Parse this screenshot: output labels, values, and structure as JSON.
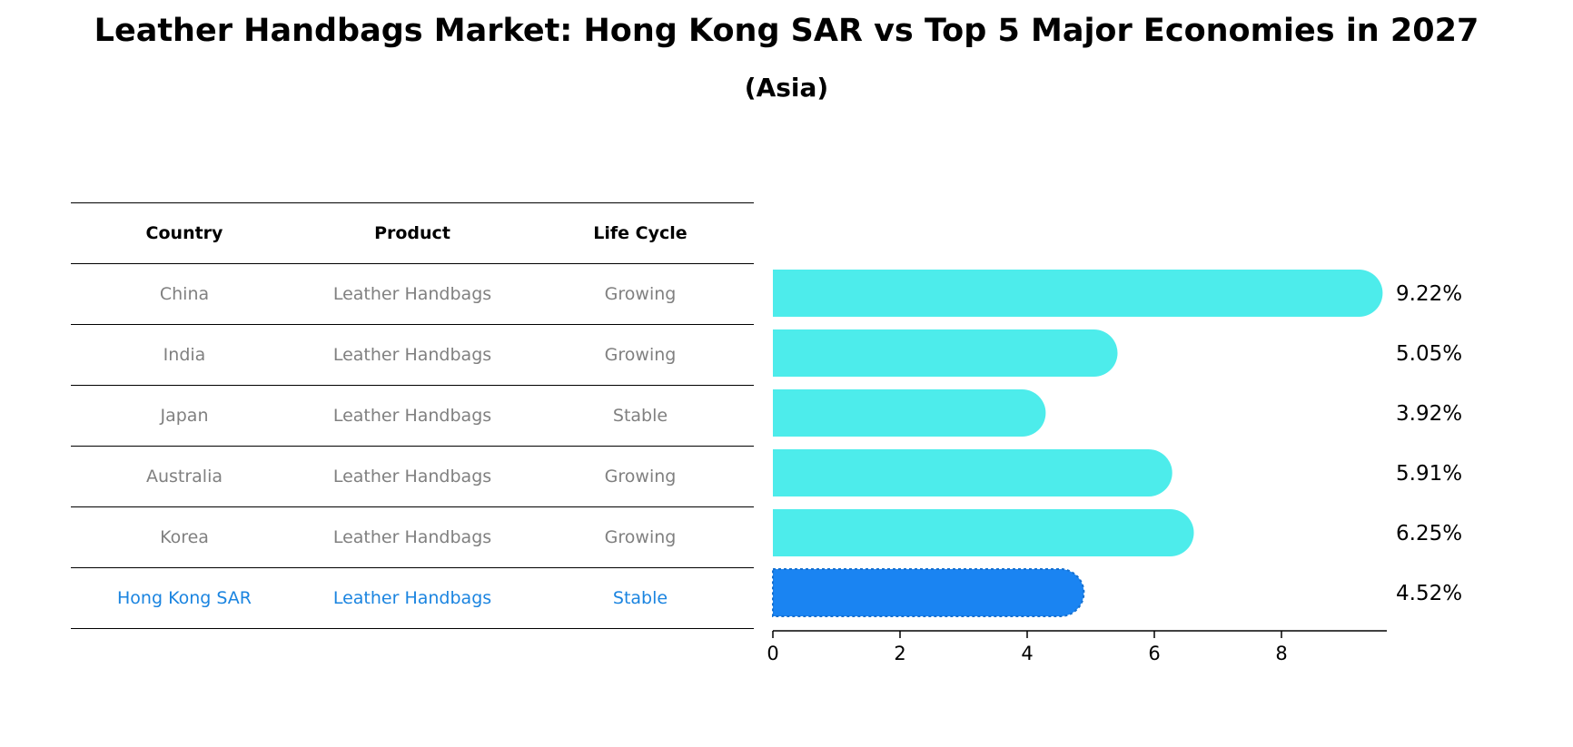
{
  "title": "Leather Handbags Market: Hong Kong SAR vs Top 5 Major Economies in 2027",
  "subtitle": "(Asia)",
  "table": {
    "headers": [
      "Country",
      "Product",
      "Life Cycle"
    ],
    "rows": [
      {
        "country": "China",
        "product": "Leather Handbags",
        "life_cycle": "Growing"
      },
      {
        "country": "India",
        "product": "Leather Handbags",
        "life_cycle": "Growing"
      },
      {
        "country": "Japan",
        "product": "Leather Handbags",
        "life_cycle": "Stable"
      },
      {
        "country": "Australia",
        "product": "Leather Handbags",
        "life_cycle": "Growing"
      },
      {
        "country": "Korea",
        "product": "Leather Handbags",
        "life_cycle": "Growing"
      },
      {
        "country": "Hong Kong SAR",
        "product": "Leather Handbags",
        "life_cycle": "Stable"
      }
    ]
  },
  "colors": {
    "bar": "#4deceb",
    "highlight_bar": "#1a84f2",
    "highlight_text": "#1a84e0",
    "muted_text": "#808080"
  },
  "chart_data": {
    "type": "bar",
    "orientation": "horizontal",
    "categories": [
      "China",
      "India",
      "Japan",
      "Australia",
      "Korea",
      "Hong Kong SAR"
    ],
    "values": [
      9.22,
      5.05,
      3.92,
      5.91,
      6.25,
      4.52
    ],
    "value_labels": [
      "9.22%",
      "5.05%",
      "3.92%",
      "5.91%",
      "6.25%",
      "4.52%"
    ],
    "highlight": "Hong Kong SAR",
    "xlim": [
      0,
      9.7
    ],
    "xticks": [
      0,
      2,
      4,
      6,
      8
    ],
    "xlabel": "",
    "ylabel": ""
  }
}
